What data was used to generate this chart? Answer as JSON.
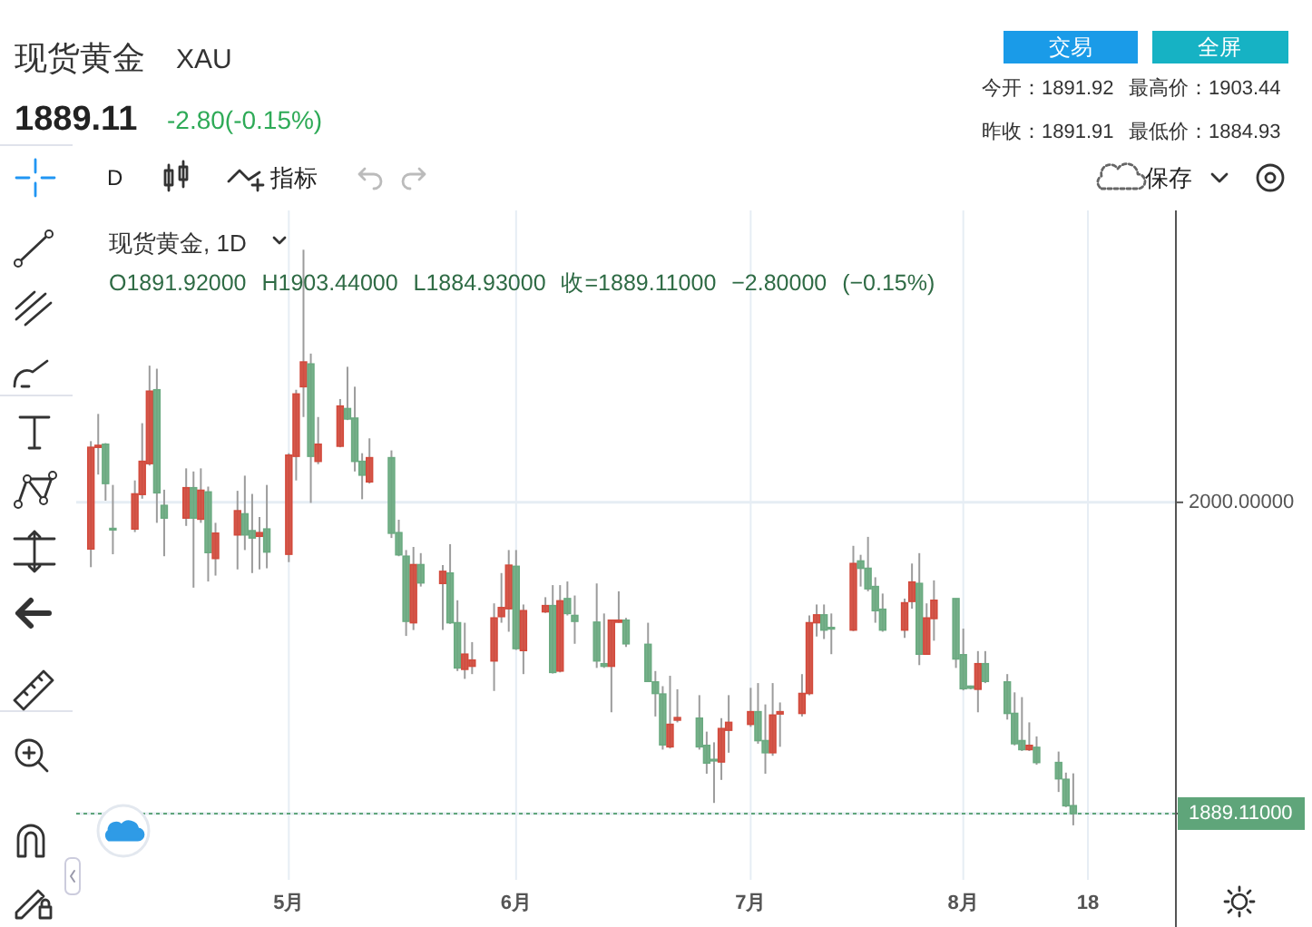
{
  "chart_data": {
    "type": "candlestick",
    "title": "现货黄金",
    "annotations": [
      "XAU",
      "1889.11",
      "-2.80(-0.15%)",
      "交易",
      "全屏",
      "今开：1891.92",
      "最高价：1903.44",
      "昨收：1891.91",
      "最低价：1884.93",
      "D",
      "指标",
      "保存",
      "现货黄金, 1D",
      "O1891.92000 H1903.44000 L1884.93000 收=1889.11000 −2.80000 (−0.15%)"
    ],
    "x": [
      "--04-04",
      "--04-05",
      "--04-06",
      "--04-07",
      "--04-10",
      "--04-11",
      "--04-12",
      "--04-13",
      "--04-14",
      "--04-17",
      "--04-18",
      "--04-19",
      "--04-20",
      "--04-21",
      "--04-24",
      "--04-25",
      "--04-26",
      "--04-27",
      "--04-28",
      "--05-01",
      "--05-02",
      "--05-03",
      "--05-04",
      "--05-05",
      "--05-08",
      "--05-09",
      "--05-10",
      "--05-11",
      "--05-12",
      "--05-15",
      "--05-16",
      "--05-17",
      "--05-18",
      "--05-19",
      "--05-22",
      "--05-23",
      "--05-24",
      "--05-25",
      "--05-26",
      "--05-29",
      "--05-30",
      "--05-31",
      "--06-01",
      "--06-02",
      "--06-05",
      "--06-06",
      "--06-07",
      "--06-08",
      "--06-09",
      "--06-12",
      "--06-13",
      "--06-14",
      "--06-15",
      "--06-16",
      "--06-19",
      "--06-20",
      "--06-21",
      "--06-22",
      "--06-23",
      "--06-26",
      "--06-27",
      "--06-28",
      "--06-29",
      "--06-30",
      "--07-03",
      "--07-04",
      "--07-05",
      "--07-06",
      "--07-07",
      "--07-10",
      "--07-11",
      "--07-12",
      "--07-13",
      "--07-14",
      "--07-17",
      "--07-18",
      "--07-19",
      "--07-20",
      "--07-21",
      "--07-24",
      "--07-25",
      "--07-26",
      "--07-27",
      "--07-28",
      "--07-31",
      "--08-01",
      "--08-02",
      "--08-03",
      "--08-04",
      "--08-07",
      "--08-08",
      "--08-09",
      "--08-10",
      "--08-11",
      "--08-14",
      "--08-15",
      "--08-16"
    ],
    "ohlc": [
      [
        1983.4,
        2021.8,
        1976.9,
        2019.6
      ],
      [
        2019.6,
        2031.5,
        2009.9,
        2020.3
      ],
      [
        2020.7,
        2021.1,
        2000.6,
        2006.7
      ],
      [
        1990.7,
        2006.2,
        1981.5,
        1990.3
      ],
      [
        1990.5,
        2007.8,
        1989.4,
        2003.0
      ],
      [
        2002.8,
        2028.2,
        2001.3,
        2014.6
      ],
      [
        2013.8,
        2048.7,
        2013.1,
        2039.6
      ],
      [
        2040.1,
        2047.6,
        1992.7,
        2003.4
      ],
      [
        1998.9,
        2004.5,
        1980.8,
        1994.4
      ],
      [
        1994.4,
        2012.1,
        1991.6,
        2005.2
      ],
      [
        2005.2,
        2011.0,
        1969.6,
        1994.4
      ],
      [
        1994.0,
        2012.1,
        1992.7,
        2004.3
      ],
      [
        2003.7,
        2005.6,
        1971.8,
        1982.1
      ],
      [
        1980.0,
        1992.7,
        1973.9,
        1989.0
      ],
      [
        1988.4,
        2004.1,
        1976.1,
        1997.0
      ],
      [
        1995.9,
        2009.5,
        1983.0,
        1988.4
      ],
      [
        1989.9,
        2003.0,
        1974.8,
        1987.3
      ],
      [
        1987.9,
        1994.8,
        1976.1,
        1989.2
      ],
      [
        1990.5,
        2006.2,
        1976.5,
        1982.3
      ],
      [
        1981.5,
        2017.5,
        1978.7,
        2016.8
      ],
      [
        2016.4,
        2040.1,
        2007.8,
        2038.6
      ],
      [
        2041.2,
        2090.0,
        2030.4,
        2050.0
      ],
      [
        2049.3,
        2053.0,
        1999.8,
        2016.4
      ],
      [
        2014.6,
        2030.4,
        2013.6,
        2020.7
      ],
      [
        2020.0,
        2036.8,
        2019.6,
        2034.3
      ],
      [
        2033.4,
        2048.3,
        2029.3,
        2029.7
      ],
      [
        2030.0,
        2041.2,
        2011.0,
        2014.6
      ],
      [
        2014.6,
        2017.5,
        2001.1,
        2009.7
      ],
      [
        2007.3,
        2022.8,
        2006.7,
        2015.9
      ],
      [
        2015.9,
        2018.5,
        1987.3,
        1989.0
      ],
      [
        1989.2,
        1993.8,
        1980.8,
        1981.3
      ],
      [
        1980.8,
        1983.0,
        1952.4,
        1957.6
      ],
      [
        1957.1,
        1984.1,
        1954.5,
        1977.8
      ],
      [
        1977.8,
        1981.9,
        1970.0,
        1971.3
      ],
      [
        1971.1,
        1977.6,
        1954.5,
        1975.4
      ],
      [
        1974.8,
        1985.1,
        1956.7,
        1957.1
      ],
      [
        1957.1,
        1965.1,
        1939.9,
        1941.0
      ],
      [
        1940.5,
        1957.1,
        1937.1,
        1945.9
      ],
      [
        1941.6,
        1950.2,
        1938.8,
        1943.8
      ],
      [
        1943.5,
        1964.0,
        1932.8,
        1958.8
      ],
      [
        1959.3,
        1974.8,
        1957.1,
        1962.5
      ],
      [
        1962.1,
        1983.0,
        1953.9,
        1977.6
      ],
      [
        1977.2,
        1983.0,
        1947.4,
        1947.9
      ],
      [
        1947.2,
        1963.6,
        1938.8,
        1961.4
      ],
      [
        1961.0,
        1966.2,
        1960.6,
        1963.2
      ],
      [
        1963.2,
        1970.5,
        1939.0,
        1939.4
      ],
      [
        1939.9,
        1970.5,
        1939.4,
        1964.9
      ],
      [
        1965.7,
        1971.8,
        1959.7,
        1960.4
      ],
      [
        1959.7,
        1966.8,
        1949.6,
        1957.6
      ],
      [
        1957.3,
        1971.1,
        1941.0,
        1943.5
      ],
      [
        1942.5,
        1960.4,
        1941.0,
        1941.6
      ],
      [
        1941.6,
        1958.2,
        1925.2,
        1958.0
      ],
      [
        1957.3,
        1968.3,
        1957.1,
        1958.0
      ],
      [
        1958.0,
        1958.8,
        1948.5,
        1949.6
      ],
      [
        1949.4,
        1957.1,
        1936.0,
        1936.2
      ],
      [
        1936.0,
        1939.9,
        1923.7,
        1931.9
      ],
      [
        1931.7,
        1934.5,
        1911.9,
        1913.6
      ],
      [
        1912.9,
        1938.2,
        1912.3,
        1920.9
      ],
      [
        1922.4,
        1933.4,
        1921.6,
        1923.3
      ],
      [
        1923.1,
        1931.3,
        1911.9,
        1912.9
      ],
      [
        1913.4,
        1918.3,
        1903.3,
        1907.1
      ],
      [
        1908.4,
        1914.5,
        1892.9,
        1908.0
      ],
      [
        1907.5,
        1923.1,
        1901.1,
        1919.4
      ],
      [
        1918.8,
        1931.3,
        1910.8,
        1921.6
      ],
      [
        1920.9,
        1933.9,
        1920.0,
        1925.4
      ],
      [
        1925.4,
        1935.6,
        1914.0,
        1915.1
      ],
      [
        1915.1,
        1928.0,
        1903.3,
        1910.8
      ],
      [
        1910.8,
        1935.6,
        1909.7,
        1924.2
      ],
      [
        1924.6,
        1928.7,
        1912.9,
        1925.4
      ],
      [
        1924.8,
        1938.8,
        1923.7,
        1931.9
      ],
      [
        1931.9,
        1959.7,
        1931.3,
        1957.1
      ],
      [
        1957.1,
        1963.6,
        1952.2,
        1959.9
      ],
      [
        1959.9,
        1963.6,
        1951.3,
        1954.5
      ],
      [
        1955.4,
        1960.4,
        1945.9,
        1955.0
      ],
      [
        1954.5,
        1984.5,
        1954.1,
        1978.2
      ],
      [
        1979.1,
        1981.3,
        1970.0,
        1976.5
      ],
      [
        1976.5,
        1987.7,
        1968.3,
        1969.2
      ],
      [
        1970.0,
        1973.3,
        1957.1,
        1961.4
      ],
      [
        1961.9,
        1967.5,
        1953.9,
        1954.5
      ],
      [
        1954.5,
        1965.7,
        1951.7,
        1964.2
      ],
      [
        1964.7,
        1978.2,
        1962.1,
        1971.6
      ],
      [
        1971.1,
        1981.9,
        1942.0,
        1945.9
      ],
      [
        1945.9,
        1964.0,
        1945.9,
        1958.8
      ],
      [
        1958.6,
        1972.2,
        1950.7,
        1965.1
      ],
      [
        1965.7,
        1965.7,
        1941.0,
        1944.2
      ],
      [
        1945.7,
        1955.0,
        1933.0,
        1933.6
      ],
      [
        1934.5,
        1934.7,
        1933.4,
        1933.8
      ],
      [
        1933.4,
        1947.0,
        1925.2,
        1942.5
      ],
      [
        1942.5,
        1947.0,
        1935.6,
        1936.2
      ],
      [
        1936.0,
        1938.8,
        1922.6,
        1924.8
      ],
      [
        1924.8,
        1932.3,
        1913.4,
        1914.0
      ],
      [
        1915.1,
        1930.6,
        1911.4,
        1911.9
      ],
      [
        1911.9,
        1921.6,
        1911.4,
        1913.4
      ],
      [
        1912.7,
        1916.6,
        1906.5,
        1907.3
      ],
      [
        1907.3,
        1911.2,
        1896.8,
        1901.5
      ],
      [
        1901.3,
        1903.7,
        1891.4,
        1891.9
      ],
      [
        1891.92,
        1903.44,
        1884.93,
        1889.11
      ]
    ],
    "colors": [
      "#d24a3c",
      "#d24a3c",
      "#6aaa80",
      "#6aaa80",
      "#d24a3c",
      "#d24a3c",
      "#d24a3c",
      "#6aaa80",
      "#6aaa80",
      "#d24a3c",
      "#6aaa80",
      "#d24a3c",
      "#6aaa80",
      "#d24a3c",
      "#d24a3c",
      "#6aaa80",
      "#6aaa80",
      "#d24a3c",
      "#6aaa80",
      "#d24a3c",
      "#d24a3c",
      "#d24a3c",
      "#6aaa80",
      "#d24a3c",
      "#d24a3c",
      "#6aaa80",
      "#6aaa80",
      "#6aaa80",
      "#d24a3c",
      "#6aaa80",
      "#6aaa80",
      "#6aaa80",
      "#d24a3c",
      "#6aaa80",
      "#d24a3c",
      "#6aaa80",
      "#6aaa80",
      "#d24a3c",
      "#d24a3c",
      "#d24a3c",
      "#d24a3c",
      "#d24a3c",
      "#6aaa80",
      "#d24a3c",
      "#d24a3c",
      "#6aaa80",
      "#d24a3c",
      "#6aaa80",
      "#6aaa80",
      "#6aaa80",
      "#6aaa80",
      "#d24a3c",
      "#d24a3c",
      "#6aaa80",
      "#6aaa80",
      "#6aaa80",
      "#6aaa80",
      "#d24a3c",
      "#d24a3c",
      "#6aaa80",
      "#6aaa80",
      "#6aaa80",
      "#d24a3c",
      "#d24a3c",
      "#d24a3c",
      "#6aaa80",
      "#6aaa80",
      "#d24a3c",
      "#d24a3c",
      "#d24a3c",
      "#d24a3c",
      "#d24a3c",
      "#6aaa80",
      "#6aaa80",
      "#d24a3c",
      "#6aaa80",
      "#6aaa80",
      "#6aaa80",
      "#6aaa80",
      "#d24a3c",
      "#d24a3c",
      "#6aaa80",
      "#d24a3c",
      "#d24a3c",
      "#6aaa80",
      "#6aaa80",
      "#6aaa80",
      "#d24a3c",
      "#6aaa80",
      "#6aaa80",
      "#6aaa80",
      "#6aaa80",
      "#d24a3c",
      "#6aaa80",
      "#6aaa80",
      "#6aaa80",
      "#6aaa80"
    ],
    "xlim": [
      "--04-02",
      "--08-30"
    ],
    "xticks": [
      {
        "value": "--05-01",
        "label": "5月"
      },
      {
        "value": "--06-01",
        "label": "6月"
      },
      {
        "value": "--07-03",
        "label": "7月"
      },
      {
        "value": "--08-01",
        "label": "8月"
      },
      {
        "value": "--08-18",
        "label": "18"
      }
    ],
    "ylim": [
      1865.5,
      2104
    ],
    "yticks": [
      {
        "value": 1889.11,
        "label": "1889.11000"
      },
      {
        "value": 2000,
        "label": "2000.00000"
      }
    ],
    "ref_lines": [
      {
        "axis": "y",
        "value": 1889.11,
        "color": "#5fa57a",
        "line_style": "dotted"
      }
    ],
    "grid": true
  }
}
